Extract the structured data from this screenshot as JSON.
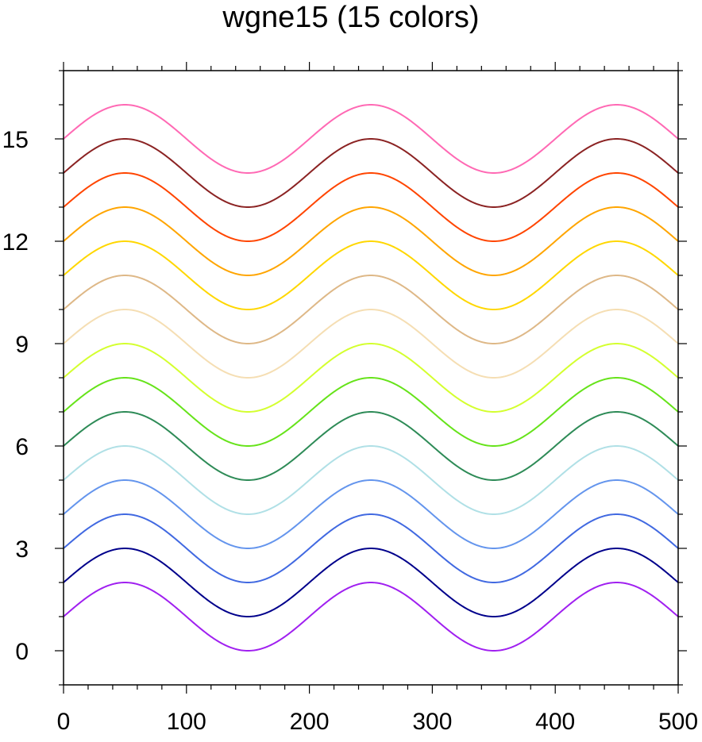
{
  "chart_data": {
    "type": "line",
    "title": "wgne15 (15 colors)",
    "xlabel": "",
    "ylabel": "",
    "xlim": [
      0,
      500
    ],
    "ylim": [
      -1,
      17
    ],
    "x_ticks": [
      0,
      100,
      200,
      300,
      400,
      500
    ],
    "y_ticks": [
      0,
      3,
      6,
      9,
      12,
      15
    ],
    "curve": {
      "amplitude": 1,
      "period": 200,
      "peak_x": [
        50,
        250,
        450
      ],
      "trough_x": [
        150,
        350
      ]
    },
    "series": [
      {
        "offset": 1,
        "color": "#a020f0"
      },
      {
        "offset": 2,
        "color": "#00008b"
      },
      {
        "offset": 3,
        "color": "#4169e1"
      },
      {
        "offset": 4,
        "color": "#6495ed"
      },
      {
        "offset": 5,
        "color": "#b0e0e6"
      },
      {
        "offset": 6,
        "color": "#2e8b57"
      },
      {
        "offset": 7,
        "color": "#66e31a"
      },
      {
        "offset": 8,
        "color": "#d4ff2f"
      },
      {
        "offset": 9,
        "color": "#f5deb3"
      },
      {
        "offset": 10,
        "color": "#deb887"
      },
      {
        "offset": 11,
        "color": "#ffd700"
      },
      {
        "offset": 12,
        "color": "#ffa500"
      },
      {
        "offset": 13,
        "color": "#ff4500"
      },
      {
        "offset": 14,
        "color": "#8b2323"
      },
      {
        "offset": 15,
        "color": "#ff69b4"
      }
    ]
  }
}
